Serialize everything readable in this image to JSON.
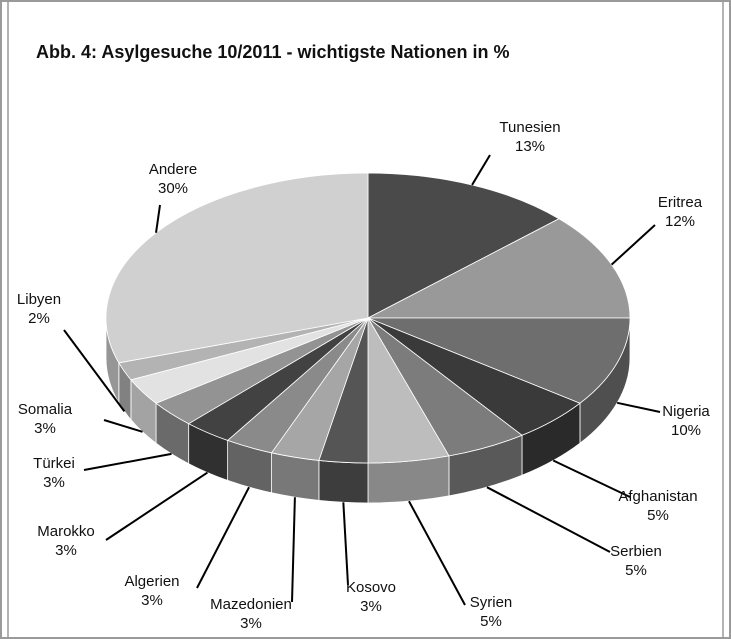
{
  "chart_data": {
    "type": "pie",
    "title": "Abb. 4: Asylgesuche 10/2011 - wichtigste Nationen in %",
    "categories": [
      "Tunesien",
      "Eritrea",
      "Nigeria",
      "Afghanistan",
      "Serbien",
      "Syrien",
      "Kosovo",
      "Mazedonien",
      "Algerien",
      "Marokko",
      "Türkei",
      "Somalia",
      "Libyen",
      "Andere"
    ],
    "values": [
      13,
      12,
      10,
      5,
      5,
      5,
      3,
      3,
      3,
      3,
      3,
      3,
      2,
      30
    ],
    "value_labels": [
      "13%",
      "12%",
      "10%",
      "5%",
      "5%",
      "5%",
      "3%",
      "3%",
      "3%",
      "3%",
      "3%",
      "3%",
      "2%",
      "30%"
    ],
    "colors": [
      "#4a4a4a",
      "#999999",
      "#6e6e6e",
      "#3a3a3a",
      "#7c7c7c",
      "#bdbdbd",
      "#555555",
      "#a6a6a6",
      "#8a8a8a",
      "#424242",
      "#939393",
      "#e2e2e2",
      "#b3b3b3",
      "#d0d0d0"
    ]
  }
}
